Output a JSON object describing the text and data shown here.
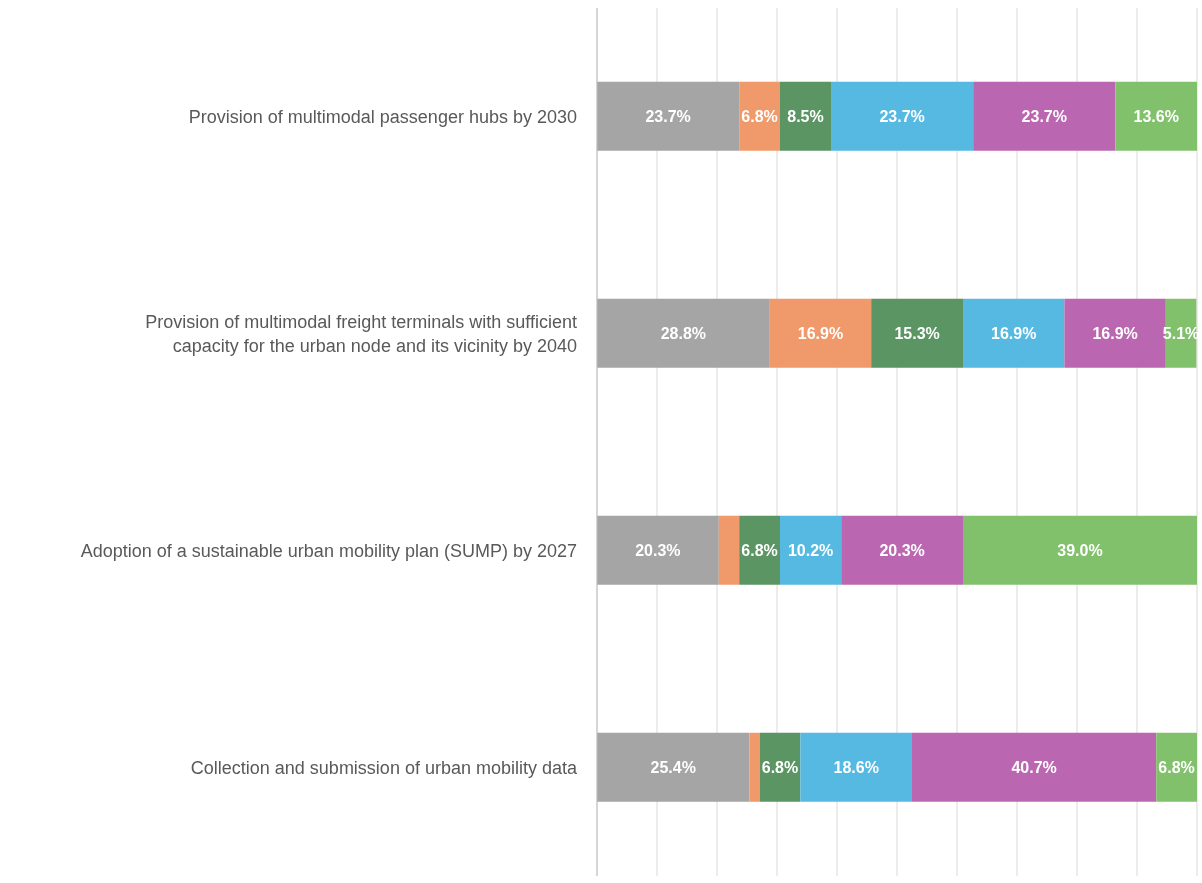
{
  "chart_data": {
    "type": "bar",
    "orientation": "horizontal",
    "stacked": true,
    "categories": [
      "Provision of multimodal passenger hubs by 2030",
      "Provision of multimodal freight terminals with sufficient capacity for the urban node and its vicinity by 2040",
      "Adoption of a sustainable urban mobility plan (SUMP) by 2027",
      "Collection and submission of urban mobility data"
    ],
    "series": [
      {
        "color": "#a5a5a5",
        "values": [
          23.7,
          28.8,
          20.3,
          25.4
        ],
        "value_labels": [
          "23.7%",
          "28.8%",
          "20.3%",
          "25.4%"
        ]
      },
      {
        "color": "#f0996b",
        "values": [
          6.8,
          16.9,
          3.4,
          1.7
        ],
        "value_labels": [
          "6.8%",
          "16.9%",
          null,
          null
        ]
      },
      {
        "color": "#5b9563",
        "values": [
          8.5,
          15.3,
          6.8,
          6.8
        ],
        "value_labels": [
          "8.5%",
          "15.3%",
          "6.8%",
          "6.8%"
        ]
      },
      {
        "color": "#56b9e2",
        "values": [
          23.7,
          16.9,
          10.2,
          18.6
        ],
        "value_labels": [
          "23.7%",
          "16.9%",
          "10.2%",
          "18.6%"
        ]
      },
      {
        "color": "#bb66b0",
        "values": [
          23.7,
          16.9,
          20.3,
          40.7
        ],
        "value_labels": [
          "23.7%",
          "16.9%",
          "20.3%",
          "40.7%"
        ]
      },
      {
        "color": "#82c16c",
        "values": [
          13.6,
          5.1,
          39.0,
          6.8
        ],
        "value_labels": [
          "13.6%",
          "5.1%",
          "39.0%",
          "6.8%"
        ]
      }
    ],
    "xlim": [
      0,
      100
    ],
    "xticks": [
      {
        "value": 0,
        "label": null
      },
      {
        "value": 10,
        "label": null
      },
      {
        "value": 20,
        "label": null
      },
      {
        "value": 30,
        "label": null
      },
      {
        "value": 40,
        "label": null
      },
      {
        "value": 50,
        "label": null
      },
      {
        "value": 60,
        "label": null
      },
      {
        "value": 70,
        "label": null
      },
      {
        "value": 80,
        "label": null
      },
      {
        "value": 90,
        "label": null
      },
      {
        "value": 100,
        "label": null
      }
    ],
    "tick_labels": "y",
    "grid": "x",
    "legend": false
  }
}
